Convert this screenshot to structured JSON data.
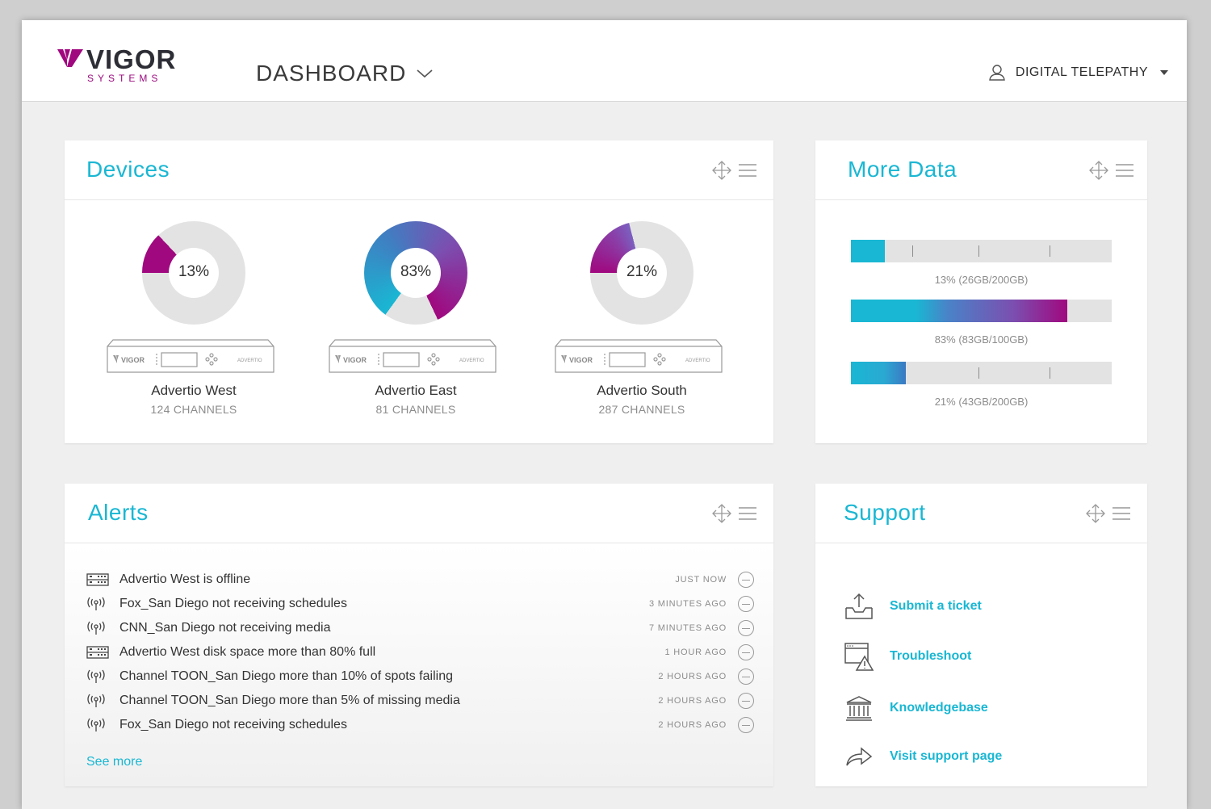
{
  "header": {
    "logo_word": "VIGOR",
    "logo_sub": "SYSTEMS",
    "dashboard_label": "DASHBOARD",
    "user_name": "DIGITAL TELEPATHY"
  },
  "devices": {
    "title": "Devices",
    "items": [
      {
        "name": "Advertio West",
        "channels": "124 CHANNELS",
        "percent_label": "13%",
        "percent": 13
      },
      {
        "name": "Advertio East",
        "channels": "81 CHANNELS",
        "percent_label": "83%",
        "percent": 83
      },
      {
        "name": "Advertio South",
        "channels": "287 CHANNELS",
        "percent_label": "21%",
        "percent": 21
      }
    ],
    "box_brand": "VIGOR",
    "box_model": "ADVERTIO"
  },
  "more_data": {
    "title": "More Data",
    "bars": [
      {
        "label": "13% (26GB/200GB)",
        "fraction": 0.13
      },
      {
        "label": "83% (83GB/100GB)",
        "fraction": 0.83
      },
      {
        "label": "21% (43GB/200GB)",
        "fraction": 0.21
      }
    ]
  },
  "alerts": {
    "title": "Alerts",
    "items": [
      {
        "icon": "server-icon",
        "message": "Advertio West is offline",
        "time": "JUST NOW"
      },
      {
        "icon": "broadcast-icon",
        "message": "Fox_San Diego not receiving schedules",
        "time": "3 MINUTES AGO"
      },
      {
        "icon": "broadcast-icon",
        "message": "CNN_San Diego not receiving media",
        "time": "7 MINUTES AGO"
      },
      {
        "icon": "server-icon",
        "message": "Advertio West disk space more than 80% full",
        "time": "1 HOUR AGO"
      },
      {
        "icon": "broadcast-icon",
        "message": "Channel TOON_San Diego more than 10% of spots failing",
        "time": "2 HOURS AGO"
      },
      {
        "icon": "broadcast-icon",
        "message": "Channel TOON_San Diego more than 5% of missing media",
        "time": "2 HOURS AGO"
      },
      {
        "icon": "broadcast-icon",
        "message": "Fox_San Diego not receiving schedules",
        "time": "2 HOURS AGO"
      }
    ],
    "see_more": "See more"
  },
  "support": {
    "title": "Support",
    "items": [
      {
        "icon": "upload-tray-icon",
        "label": "Submit a ticket"
      },
      {
        "icon": "window-warning-icon",
        "label": "Troubleshoot"
      },
      {
        "icon": "library-icon",
        "label": "Knowledgebase"
      },
      {
        "icon": "share-arrow-icon",
        "label": "Visit support page"
      }
    ]
  },
  "colors": {
    "accent": "#19b7d3",
    "magenta": "#a0087f",
    "purple": "#7b4fb0",
    "track": "#e3e3e3"
  }
}
